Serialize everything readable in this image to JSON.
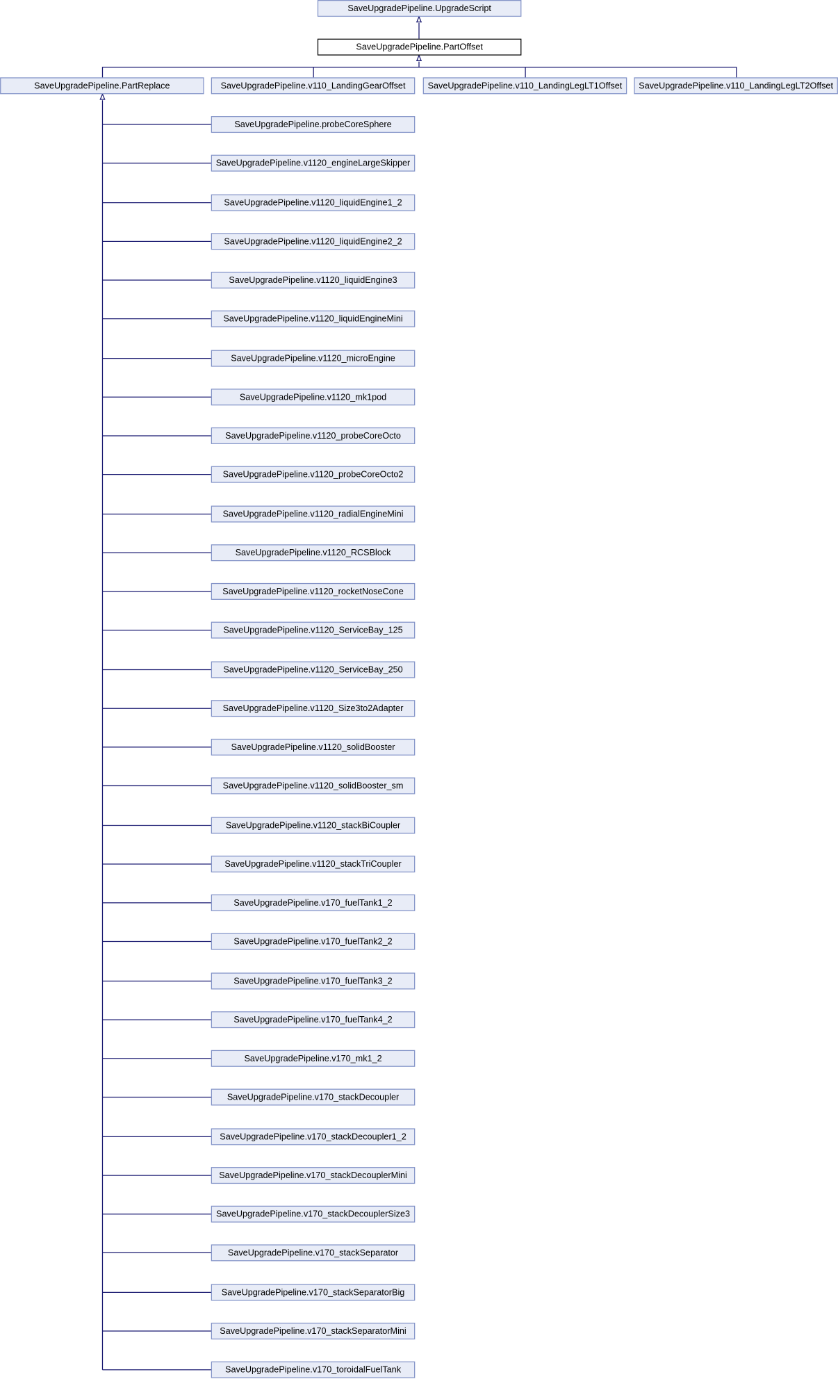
{
  "root": "SaveUpgradePipeline.UpgradeScript",
  "parent": "SaveUpgradePipeline.PartOffset",
  "siblings": [
    "SaveUpgradePipeline.PartReplace",
    "SaveUpgradePipeline.v110_LandingGearOffset",
    "SaveUpgradePipeline.v110_LandingLegLT1Offset",
    "SaveUpgradePipeline.v110_LandingLegLT2Offset"
  ],
  "children": [
    "SaveUpgradePipeline.probeCoreSphere",
    "SaveUpgradePipeline.v1120_engineLargeSkipper",
    "SaveUpgradePipeline.v1120_liquidEngine1_2",
    "SaveUpgradePipeline.v1120_liquidEngine2_2",
    "SaveUpgradePipeline.v1120_liquidEngine3",
    "SaveUpgradePipeline.v1120_liquidEngineMini",
    "SaveUpgradePipeline.v1120_microEngine",
    "SaveUpgradePipeline.v1120_mk1pod",
    "SaveUpgradePipeline.v1120_probeCoreOcto",
    "SaveUpgradePipeline.v1120_probeCoreOcto2",
    "SaveUpgradePipeline.v1120_radialEngineMini",
    "SaveUpgradePipeline.v1120_RCSBlock",
    "SaveUpgradePipeline.v1120_rocketNoseCone",
    "SaveUpgradePipeline.v1120_ServiceBay_125",
    "SaveUpgradePipeline.v1120_ServiceBay_250",
    "SaveUpgradePipeline.v1120_Size3to2Adapter",
    "SaveUpgradePipeline.v1120_solidBooster",
    "SaveUpgradePipeline.v1120_solidBooster_sm",
    "SaveUpgradePipeline.v1120_stackBiCoupler",
    "SaveUpgradePipeline.v1120_stackTriCoupler",
    "SaveUpgradePipeline.v170_fuelTank1_2",
    "SaveUpgradePipeline.v170_fuelTank2_2",
    "SaveUpgradePipeline.v170_fuelTank3_2",
    "SaveUpgradePipeline.v170_fuelTank4_2",
    "SaveUpgradePipeline.v170_mk1_2",
    "SaveUpgradePipeline.v170_stackDecoupler",
    "SaveUpgradePipeline.v170_stackDecoupler1_2",
    "SaveUpgradePipeline.v170_stackDecouplerMini",
    "SaveUpgradePipeline.v170_stackDecouplerSize3",
    "SaveUpgradePipeline.v170_stackSeparator",
    "SaveUpgradePipeline.v170_stackSeparatorBig",
    "SaveUpgradePipeline.v170_stackSeparatorMini",
    "SaveUpgradePipeline.v170_toroidalFuelTank"
  ]
}
